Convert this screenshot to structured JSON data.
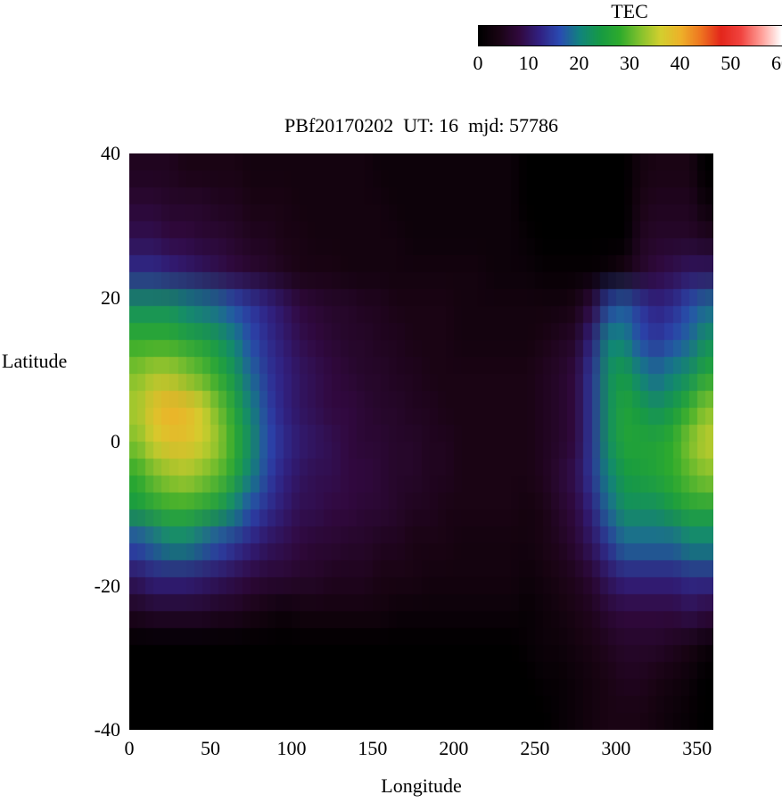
{
  "colorbar": {
    "title": "TEC",
    "ticks": [
      0,
      10,
      20,
      30,
      40,
      50,
      60
    ],
    "min": 0,
    "max": 60,
    "colormap": [
      {
        "v": 0,
        "c": "#000000"
      },
      {
        "v": 4,
        "c": "#1a0414"
      },
      {
        "v": 8,
        "c": "#31093f"
      },
      {
        "v": 12,
        "c": "#312182"
      },
      {
        "v": 16,
        "c": "#2a4bb2"
      },
      {
        "v": 20,
        "c": "#11847d"
      },
      {
        "v": 24,
        "c": "#169a44"
      },
      {
        "v": 28,
        "c": "#2fab2c"
      },
      {
        "v": 32,
        "c": "#84c22d"
      },
      {
        "v": 36,
        "c": "#d3cf2e"
      },
      {
        "v": 40,
        "c": "#eeb129"
      },
      {
        "v": 44,
        "c": "#ee7420"
      },
      {
        "v": 48,
        "c": "#e3261b"
      },
      {
        "v": 52,
        "c": "#f14440"
      },
      {
        "v": 56,
        "c": "#ff9e97"
      },
      {
        "v": 60,
        "c": "#ffffff"
      }
    ]
  },
  "chart_data": {
    "type": "heatmap",
    "title": "PBf20170202  UT: 16  mjd: 57786",
    "xlabel": "Longitude",
    "ylabel": "Latitude",
    "colorbar_label": "TEC",
    "xlim": [
      0,
      360
    ],
    "ylim": [
      -40,
      40
    ],
    "zlim": [
      0,
      60
    ],
    "x_ticks": [
      0,
      50,
      100,
      150,
      200,
      250,
      300,
      350
    ],
    "y_ticks": [
      40,
      20,
      0,
      -20,
      -40
    ],
    "lons": [
      0,
      10,
      20,
      30,
      40,
      50,
      60,
      70,
      80,
      90,
      100,
      110,
      120,
      130,
      140,
      150,
      160,
      170,
      180,
      190,
      200,
      210,
      220,
      230,
      240,
      250,
      260,
      270,
      280,
      290,
      300,
      310,
      320,
      330,
      340,
      350
    ],
    "lats": [
      40,
      35,
      30,
      25,
      20,
      15,
      10,
      5,
      0,
      -5,
      -10,
      -15,
      -20,
      -25,
      -30,
      -35,
      -40
    ],
    "values": [
      [
        5,
        5,
        5,
        4,
        4,
        4,
        4,
        3,
        3,
        3,
        3,
        3,
        3,
        3,
        3,
        2,
        2,
        2,
        2,
        2,
        2,
        2,
        2,
        2,
        0,
        0,
        0,
        0,
        0,
        0,
        0,
        3,
        4,
        4,
        4,
        0
      ],
      [
        7,
        7,
        6,
        6,
        6,
        5,
        5,
        4,
        4,
        4,
        3,
        3,
        3,
        3,
        3,
        3,
        2,
        2,
        2,
        2,
        2,
        2,
        2,
        2,
        0,
        0,
        0,
        0,
        0,
        0,
        0,
        4,
        5,
        5,
        5,
        2
      ],
      [
        9,
        9,
        8,
        8,
        7,
        7,
        6,
        5,
        5,
        4,
        4,
        3,
        3,
        3,
        3,
        3,
        3,
        2,
        2,
        2,
        2,
        2,
        2,
        2,
        1,
        0,
        0,
        0,
        0,
        0,
        0,
        5,
        6,
        6,
        6,
        5
      ],
      [
        13,
        13,
        12,
        11,
        10,
        9,
        8,
        7,
        6,
        5,
        4,
        4,
        4,
        3,
        3,
        3,
        3,
        3,
        3,
        3,
        3,
        3,
        2,
        2,
        2,
        1,
        1,
        1,
        1,
        2,
        4,
        6,
        8,
        9,
        10,
        10
      ],
      [
        22,
        22,
        22,
        20,
        19,
        18,
        16,
        14,
        12,
        10,
        8,
        7,
        6,
        6,
        5,
        5,
        4,
        4,
        4,
        4,
        3,
        3,
        3,
        3,
        3,
        3,
        3,
        4,
        8,
        15,
        17,
        14,
        12,
        13,
        16,
        18
      ],
      [
        28,
        28,
        28,
        26,
        25,
        23,
        20,
        16,
        13,
        11,
        9,
        8,
        7,
        6,
        6,
        5,
        5,
        4,
        4,
        4,
        3,
        3,
        3,
        3,
        3,
        4,
        5,
        6,
        12,
        20,
        20,
        16,
        14,
        16,
        18,
        22
      ],
      [
        32,
        34,
        34,
        32,
        30,
        27,
        23,
        18,
        14,
        12,
        10,
        9,
        8,
        7,
        6,
        6,
        5,
        5,
        4,
        4,
        4,
        4,
        4,
        4,
        4,
        5,
        6,
        8,
        14,
        22,
        24,
        20,
        18,
        20,
        22,
        26
      ],
      [
        34,
        38,
        40,
        39,
        36,
        31,
        26,
        20,
        15,
        12,
        10,
        9,
        8,
        8,
        7,
        6,
        6,
        5,
        5,
        4,
        4,
        4,
        4,
        4,
        4,
        5,
        6,
        8,
        14,
        22,
        26,
        24,
        22,
        24,
        28,
        32
      ],
      [
        32,
        36,
        38,
        38,
        36,
        33,
        28,
        22,
        16,
        13,
        11,
        10,
        9,
        8,
        7,
        7,
        6,
        6,
        5,
        5,
        4,
        4,
        4,
        4,
        4,
        5,
        6,
        8,
        14,
        22,
        26,
        26,
        26,
        28,
        32,
        35
      ],
      [
        28,
        31,
        33,
        34,
        32,
        30,
        26,
        20,
        15,
        12,
        10,
        9,
        9,
        8,
        8,
        7,
        6,
        6,
        5,
        5,
        4,
        4,
        4,
        4,
        4,
        5,
        7,
        9,
        14,
        20,
        24,
        25,
        26,
        28,
        30,
        32
      ],
      [
        24,
        26,
        28,
        28,
        26,
        24,
        20,
        16,
        13,
        11,
        9,
        9,
        8,
        8,
        7,
        7,
        6,
        5,
        5,
        4,
        4,
        4,
        4,
        4,
        3,
        4,
        6,
        8,
        12,
        18,
        22,
        22,
        22,
        24,
        26,
        26
      ],
      [
        16,
        18,
        20,
        20,
        18,
        16,
        14,
        12,
        10,
        9,
        8,
        7,
        7,
        6,
        6,
        5,
        5,
        4,
        4,
        4,
        3,
        3,
        3,
        3,
        3,
        4,
        5,
        7,
        10,
        14,
        18,
        18,
        18,
        18,
        20,
        20
      ],
      [
        10,
        12,
        12,
        12,
        11,
        10,
        9,
        8,
        7,
        7,
        6,
        6,
        5,
        5,
        5,
        4,
        4,
        4,
        3,
        3,
        3,
        3,
        3,
        3,
        2,
        3,
        4,
        5,
        7,
        10,
        12,
        12,
        12,
        12,
        13,
        13
      ],
      [
        5,
        6,
        6,
        6,
        6,
        5,
        5,
        4,
        3,
        2,
        3,
        3,
        3,
        3,
        3,
        3,
        2,
        2,
        2,
        2,
        2,
        2,
        2,
        2,
        1,
        2,
        3,
        4,
        5,
        7,
        8,
        8,
        8,
        8,
        9,
        8
      ],
      [
        0,
        0,
        0,
        0,
        0,
        0,
        0,
        0,
        0,
        0,
        0,
        0,
        0,
        0,
        0,
        0,
        0,
        0,
        0,
        0,
        0,
        0,
        0,
        0,
        1,
        2,
        2,
        3,
        4,
        5,
        6,
        6,
        6,
        5,
        4,
        2
      ],
      [
        0,
        0,
        0,
        0,
        0,
        0,
        0,
        0,
        0,
        0,
        0,
        0,
        0,
        0,
        0,
        0,
        0,
        0,
        0,
        0,
        0,
        0,
        0,
        0,
        0,
        1,
        1,
        2,
        3,
        4,
        5,
        5,
        4,
        3,
        2,
        0
      ],
      [
        0,
        0,
        0,
        0,
        0,
        0,
        0,
        0,
        0,
        0,
        0,
        0,
        0,
        0,
        0,
        0,
        0,
        0,
        0,
        0,
        0,
        0,
        0,
        0,
        0,
        0,
        1,
        2,
        3,
        4,
        4,
        4,
        3,
        2,
        1,
        0
      ]
    ]
  }
}
